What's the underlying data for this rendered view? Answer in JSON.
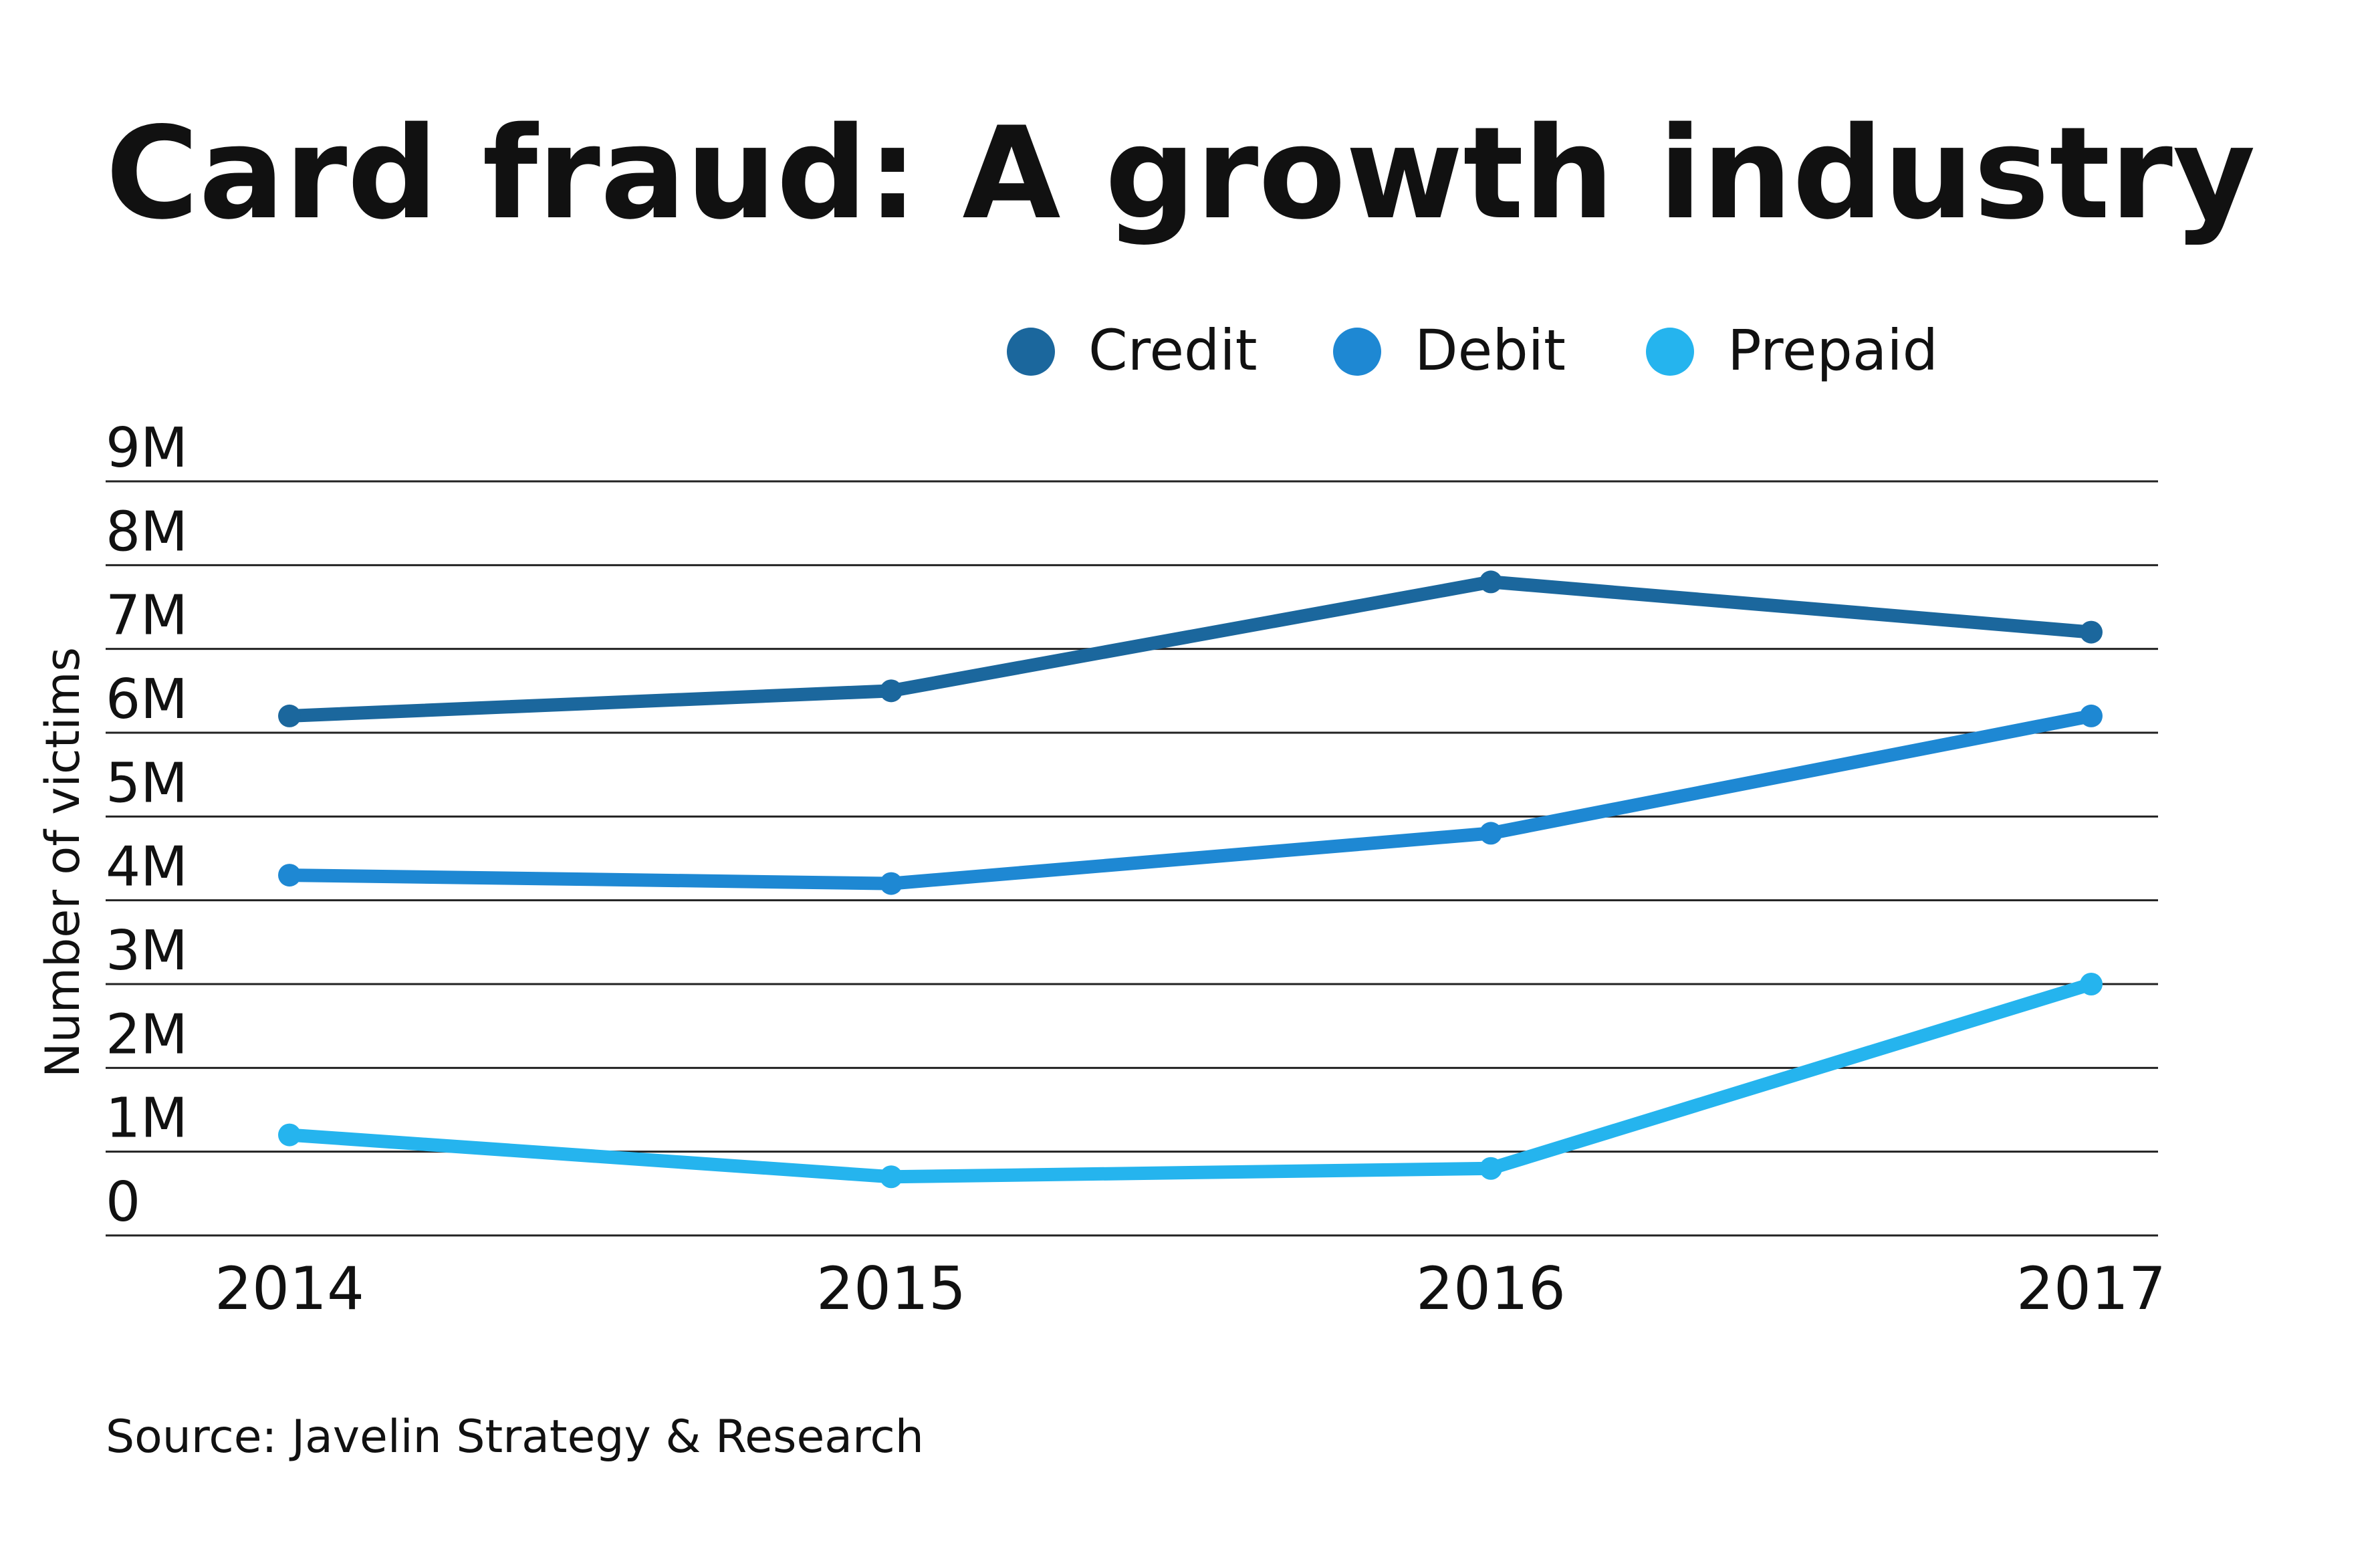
{
  "header": {
    "title": "Card fraud: A growth industry"
  },
  "footer": {
    "source": "Source: Javelin Strategy & Research"
  },
  "chart_data": {
    "type": "line",
    "title": "Card fraud: A growth industry",
    "xlabel": "",
    "ylabel": "Number of victims",
    "categories": [
      "2014",
      "2015",
      "2016",
      "2017"
    ],
    "ylim": [
      0,
      9000000
    ],
    "yticks": [
      0,
      1000000,
      2000000,
      3000000,
      4000000,
      5000000,
      6000000,
      7000000,
      8000000,
      9000000
    ],
    "ytick_labels": [
      "0",
      "1M",
      "2M",
      "3M",
      "4M",
      "5M",
      "6M",
      "7M",
      "8M",
      "9M"
    ],
    "grid": "horizontal",
    "legend_position": "top",
    "series": [
      {
        "name": "Credit",
        "color": "#1b679d",
        "values": [
          6200000,
          6500000,
          7800000,
          7200000
        ]
      },
      {
        "name": "Debit",
        "color": "#1e88d3",
        "values": [
          4300000,
          4200000,
          4800000,
          6200000
        ]
      },
      {
        "name": "Prepaid",
        "color": "#25b4ee",
        "values": [
          1200000,
          700000,
          800000,
          3000000
        ]
      }
    ]
  }
}
